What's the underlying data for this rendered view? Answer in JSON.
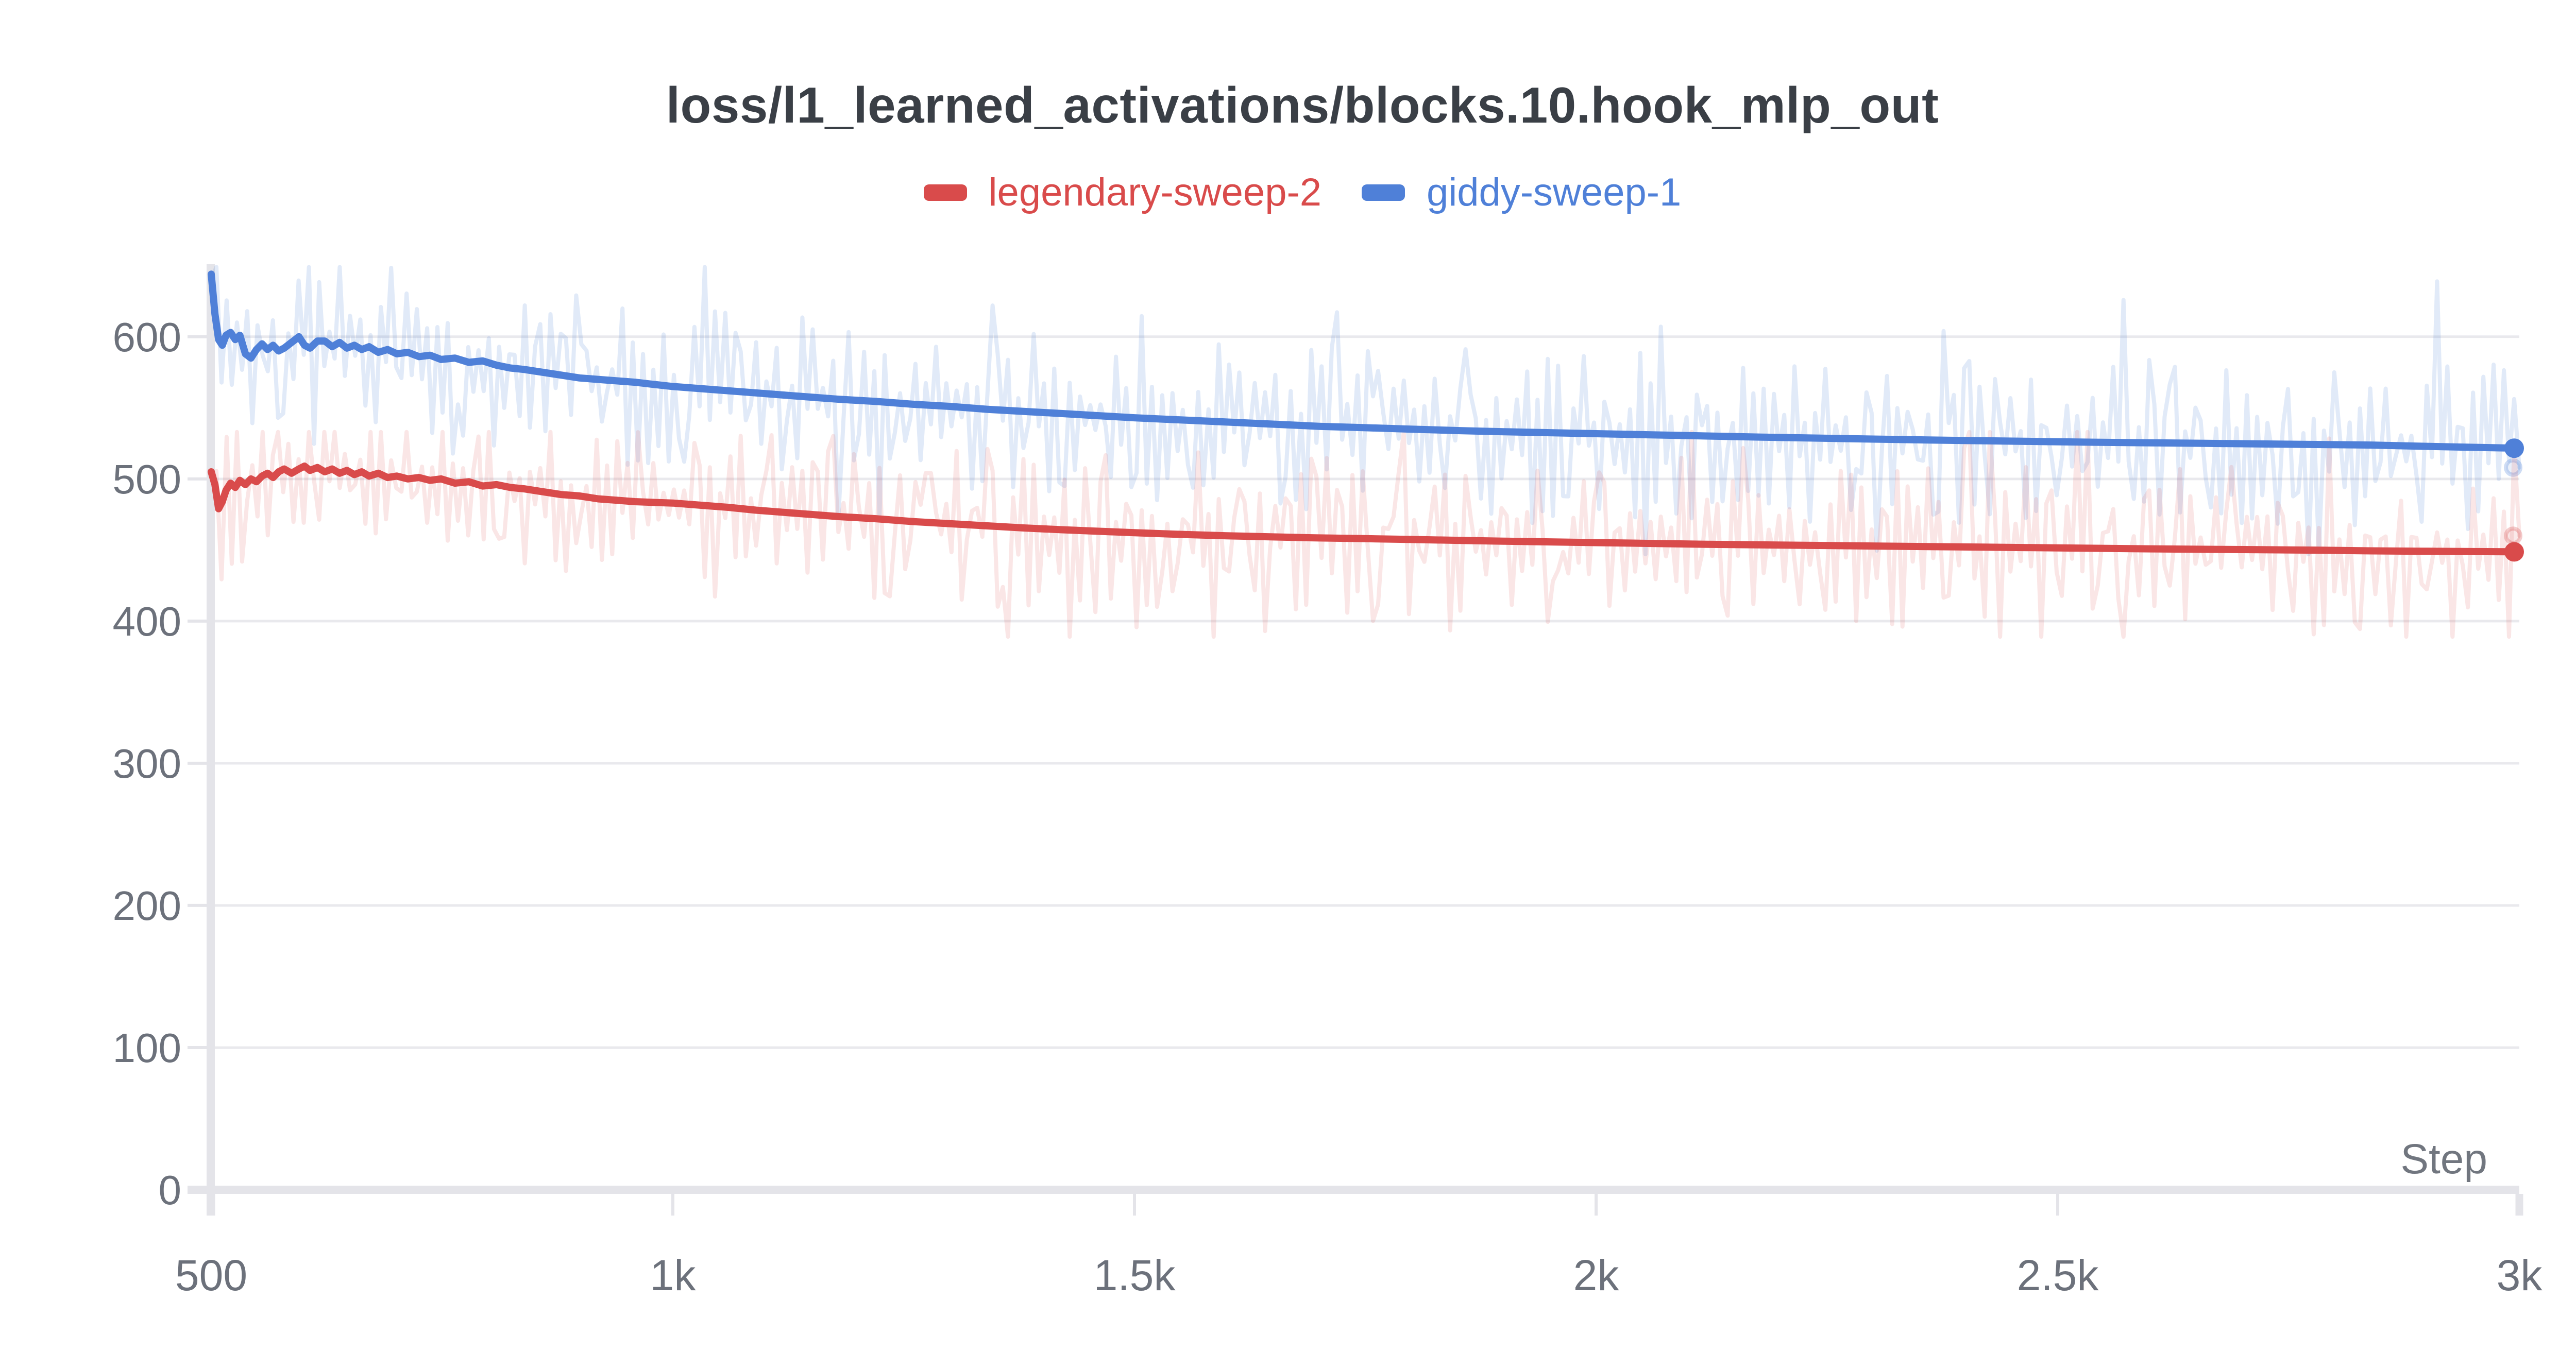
{
  "title": "loss/l1_learned_activations/blocks.10.hook_mlp_out",
  "legend": {
    "items": [
      {
        "label": "legendary-sweep-2",
        "color": "#d94b4b"
      },
      {
        "label": "giddy-sweep-1",
        "color": "#4f80d8"
      }
    ]
  },
  "colors": {
    "title_text": "#3a3f46",
    "tick_text": "#6c717b",
    "axis_label_text": "#71767f",
    "gridline": "#e9e9ed",
    "axis_bar": "#e4e4e9",
    "background": "#ffffff",
    "red": "#d94b4b",
    "blue": "#4f80d8"
  },
  "chart_data": {
    "type": "line",
    "title": "loss/l1_learned_activations/blocks.10.hook_mlp_out",
    "xlabel": "Step",
    "ylabel": "",
    "xlim": [
      500,
      3000
    ],
    "ylim": [
      0,
      651
    ],
    "grid": "horizontal-only",
    "legend_position": "top-center",
    "x_ticks": [
      {
        "value": 500,
        "label": "500"
      },
      {
        "value": 1000,
        "label": "1k"
      },
      {
        "value": 1500,
        "label": "1.5k"
      },
      {
        "value": 2000,
        "label": "2k"
      },
      {
        "value": 2500,
        "label": "2.5k"
      },
      {
        "value": 3000,
        "label": "3k"
      }
    ],
    "y_ticks": [
      {
        "value": 0,
        "label": "0"
      },
      {
        "value": 100,
        "label": "100"
      },
      {
        "value": 200,
        "label": "200"
      },
      {
        "value": 300,
        "label": "300"
      },
      {
        "value": 400,
        "label": "400"
      },
      {
        "value": 500,
        "label": "500"
      },
      {
        "value": 600,
        "label": "600"
      }
    ],
    "series": [
      {
        "name": "giddy-sweep-1",
        "color": "#4f80d8",
        "endpoint_value": 521.6,
        "raw_endpoint_value": 508,
        "smoothed": [
          [
            500,
            644
          ],
          [
            504,
            616
          ],
          [
            508,
            598
          ],
          [
            512,
            594
          ],
          [
            516,
            601
          ],
          [
            521,
            603
          ],
          [
            526,
            598
          ],
          [
            531,
            601
          ],
          [
            537,
            588
          ],
          [
            543,
            585
          ],
          [
            549,
            591
          ],
          [
            555,
            595
          ],
          [
            561,
            591
          ],
          [
            567,
            594
          ],
          [
            573,
            590
          ],
          [
            579,
            592
          ],
          [
            587,
            596
          ],
          [
            595,
            600
          ],
          [
            601,
            594
          ],
          [
            607,
            592
          ],
          [
            615,
            597
          ],
          [
            623,
            597
          ],
          [
            631,
            593
          ],
          [
            639,
            596
          ],
          [
            647,
            592
          ],
          [
            655,
            594
          ],
          [
            663,
            591
          ],
          [
            671,
            593
          ],
          [
            681,
            589
          ],
          [
            691,
            591
          ],
          [
            701,
            588
          ],
          [
            713,
            589
          ],
          [
            725,
            586
          ],
          [
            737,
            587
          ],
          [
            749,
            584
          ],
          [
            764,
            585
          ],
          [
            779,
            582
          ],
          [
            794,
            583
          ],
          [
            809,
            580
          ],
          [
            824,
            578
          ],
          [
            839,
            577
          ],
          [
            859,
            575
          ],
          [
            879,
            573
          ],
          [
            899,
            571
          ],
          [
            919,
            570
          ],
          [
            939,
            569
          ],
          [
            959,
            568
          ],
          [
            979,
            566.5
          ],
          [
            1000,
            565
          ],
          [
            1030,
            563.5
          ],
          [
            1060,
            562
          ],
          [
            1090,
            560.5
          ],
          [
            1120,
            559
          ],
          [
            1150,
            557.5
          ],
          [
            1180,
            556
          ],
          [
            1220,
            554.5
          ],
          [
            1260,
            552.5
          ],
          [
            1300,
            551
          ],
          [
            1340,
            549
          ],
          [
            1380,
            547.5
          ],
          [
            1420,
            546
          ],
          [
            1460,
            544.5
          ],
          [
            1500,
            543
          ],
          [
            1550,
            541.5
          ],
          [
            1600,
            540
          ],
          [
            1650,
            538.5
          ],
          [
            1700,
            537
          ],
          [
            1750,
            536
          ],
          [
            1800,
            535
          ],
          [
            1850,
            534
          ],
          [
            1900,
            533.2
          ],
          [
            1950,
            532.5
          ],
          [
            2000,
            531.8
          ],
          [
            2060,
            531
          ],
          [
            2120,
            530.2
          ],
          [
            2180,
            529.4
          ],
          [
            2240,
            528.7
          ],
          [
            2300,
            528
          ],
          [
            2360,
            527.4
          ],
          [
            2420,
            526.8
          ],
          [
            2480,
            526.3
          ],
          [
            2540,
            525.8
          ],
          [
            2600,
            525.4
          ],
          [
            2660,
            525
          ],
          [
            2720,
            524.6
          ],
          [
            2780,
            524.2
          ],
          [
            2840,
            523.8
          ],
          [
            2900,
            522.9
          ],
          [
            2950,
            522.2
          ],
          [
            3000,
            521.6
          ]
        ],
        "raw_noise": {
          "seed": 11,
          "points": 450,
          "first": 640,
          "last": 508,
          "amp_min": 7,
          "amp_var": 52,
          "spike_prob": 0.07,
          "spike_amp": 46,
          "clamp_min": 447,
          "clamp_max": 649,
          "opacity": 0.17
        }
      },
      {
        "name": "legendary-sweep-2",
        "color": "#d94b4b",
        "endpoint_value": 448.7,
        "raw_endpoint_value": 460,
        "smoothed": [
          [
            500,
            505
          ],
          [
            504,
            496
          ],
          [
            508,
            479
          ],
          [
            512,
            484
          ],
          [
            516,
            492
          ],
          [
            521,
            497
          ],
          [
            526,
            494
          ],
          [
            531,
            499
          ],
          [
            537,
            496
          ],
          [
            543,
            500
          ],
          [
            549,
            498
          ],
          [
            555,
            502
          ],
          [
            561,
            504
          ],
          [
            567,
            501
          ],
          [
            573,
            505
          ],
          [
            579,
            507
          ],
          [
            587,
            504
          ],
          [
            595,
            507
          ],
          [
            601,
            509
          ],
          [
            607,
            506
          ],
          [
            615,
            508
          ],
          [
            623,
            505
          ],
          [
            631,
            507
          ],
          [
            639,
            504
          ],
          [
            647,
            506
          ],
          [
            655,
            503
          ],
          [
            663,
            505
          ],
          [
            671,
            502
          ],
          [
            681,
            504
          ],
          [
            691,
            501
          ],
          [
            701,
            502
          ],
          [
            713,
            500
          ],
          [
            725,
            501
          ],
          [
            737,
            499
          ],
          [
            749,
            500
          ],
          [
            764,
            497
          ],
          [
            779,
            498
          ],
          [
            794,
            495
          ],
          [
            809,
            496
          ],
          [
            824,
            494
          ],
          [
            839,
            493
          ],
          [
            859,
            491
          ],
          [
            879,
            489
          ],
          [
            899,
            488
          ],
          [
            919,
            486
          ],
          [
            939,
            485
          ],
          [
            959,
            484
          ],
          [
            979,
            483.5
          ],
          [
            1000,
            483
          ],
          [
            1030,
            481.5
          ],
          [
            1060,
            480
          ],
          [
            1090,
            478
          ],
          [
            1120,
            476.5
          ],
          [
            1150,
            475
          ],
          [
            1180,
            473.5
          ],
          [
            1220,
            472
          ],
          [
            1260,
            470
          ],
          [
            1300,
            468.5
          ],
          [
            1340,
            467
          ],
          [
            1380,
            465.5
          ],
          [
            1420,
            464.3
          ],
          [
            1460,
            463.2
          ],
          [
            1500,
            462.2
          ],
          [
            1550,
            461
          ],
          [
            1600,
            460
          ],
          [
            1650,
            459.2
          ],
          [
            1700,
            458.5
          ],
          [
            1750,
            458
          ],
          [
            1800,
            457.4
          ],
          [
            1850,
            456.8
          ],
          [
            1900,
            456.2
          ],
          [
            1950,
            455.7
          ],
          [
            2000,
            455.2
          ],
          [
            2060,
            454.6
          ],
          [
            2120,
            454
          ],
          [
            2180,
            453.6
          ],
          [
            2240,
            453.2
          ],
          [
            2300,
            452.8
          ],
          [
            2360,
            452.4
          ],
          [
            2420,
            452
          ],
          [
            2480,
            451.6
          ],
          [
            2540,
            451.2
          ],
          [
            2600,
            450.8
          ],
          [
            2660,
            450.5
          ],
          [
            2720,
            450.2
          ],
          [
            2780,
            449.9
          ],
          [
            2840,
            449.4
          ],
          [
            2900,
            449.1
          ],
          [
            2950,
            448.9
          ],
          [
            3000,
            448.7
          ]
        ],
        "raw_noise": {
          "seed": 23,
          "points": 450,
          "first": 503,
          "last": 460,
          "amp_min": 7,
          "amp_var": 50,
          "spike_prob": 0.07,
          "spike_amp": 46,
          "clamp_min": 389,
          "clamp_max": 533,
          "opacity": 0.14
        }
      }
    ]
  }
}
